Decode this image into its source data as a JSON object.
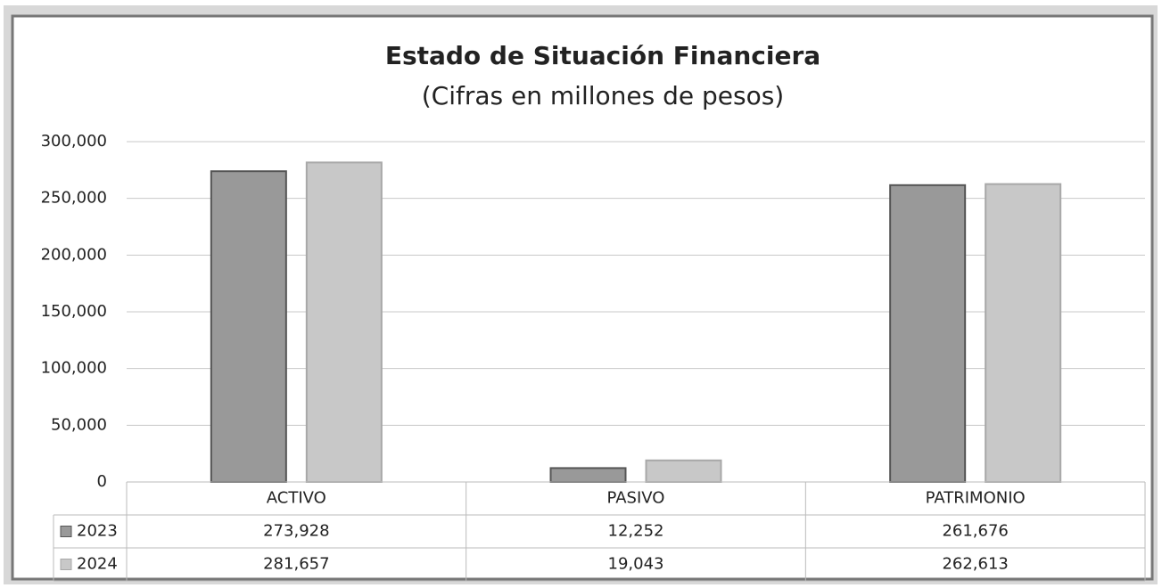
{
  "chart_data": {
    "type": "bar",
    "title": "Estado de Situación Financiera",
    "subtitle": "(Cifras en millones de pesos)",
    "categories": [
      "ACTIVO",
      "PASIVO",
      "PATRIMONIO"
    ],
    "series": [
      {
        "name": "2023",
        "color": "#999999",
        "values": [
          273928,
          12252,
          261676
        ],
        "value_labels": [
          "273,928",
          "12,252",
          "261,676"
        ]
      },
      {
        "name": "2024",
        "color": "#c8c8c8",
        "values": [
          281657,
          19043,
          262613
        ],
        "value_labels": [
          "281,657",
          "19,043",
          "262,613"
        ]
      }
    ],
    "ylim": [
      0,
      300000
    ],
    "yticks": [
      0,
      {
        "value": 50000,
        "label": "50,000"
      },
      {
        "value": 100000,
        "label": "100,000"
      },
      {
        "value": 150000,
        "label": "150,000"
      },
      {
        "value": 200000,
        "label": "200,000"
      },
      {
        "value": 250000,
        "label": "250,000"
      },
      {
        "value": 300000,
        "label": "300,000"
      }
    ],
    "grid": true,
    "data_table": true
  }
}
